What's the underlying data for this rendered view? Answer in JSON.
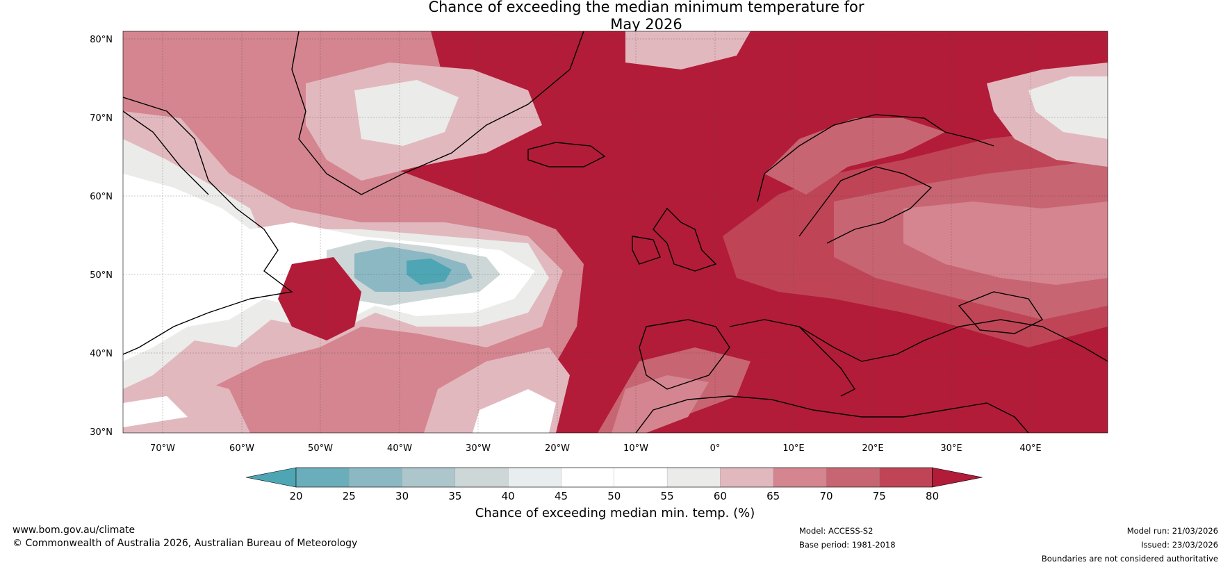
{
  "title_line1": "Chance of exceeding the median minimum temperature for",
  "title_line2": "May 2026",
  "lat_labels": [
    "80°N",
    "70°N",
    "60°N",
    "50°N",
    "40°N",
    "30°N"
  ],
  "lon_labels": [
    "70°W",
    "60°W",
    "50°W",
    "40°W",
    "30°W",
    "20°W",
    "10°W",
    "0°",
    "10°E",
    "20°E",
    "30°E",
    "40°E"
  ],
  "colorbar": {
    "title": "Chance of exceeding median min. temp. (%)",
    "ticks": [
      "20",
      "25",
      "30",
      "35",
      "40",
      "45",
      "50",
      "55",
      "60",
      "65",
      "70",
      "75",
      "80"
    ],
    "colors": [
      "#4ea6b5",
      "#6aadbb",
      "#8cb8c4",
      "#adc6cc",
      "#ced7d8",
      "#e8eeef",
      "#ffffff",
      "#ffffff",
      "#ebebe9",
      "#e2b8bf",
      "#d4858f",
      "#c86572",
      "#bf4556",
      "#b21c38"
    ]
  },
  "footer": {
    "website": "www.bom.gov.au/climate",
    "copyright": "© Commonwealth of Australia 2026, Australian Bureau of Meteorology",
    "model": "Model: ACCESS-S2",
    "base_period": "Base period: 1981-2018",
    "model_run": "Model run: 21/03/2026",
    "issued": "Issued: 23/03/2026",
    "disclaimer": "Boundaries are not considered authoritative"
  }
}
